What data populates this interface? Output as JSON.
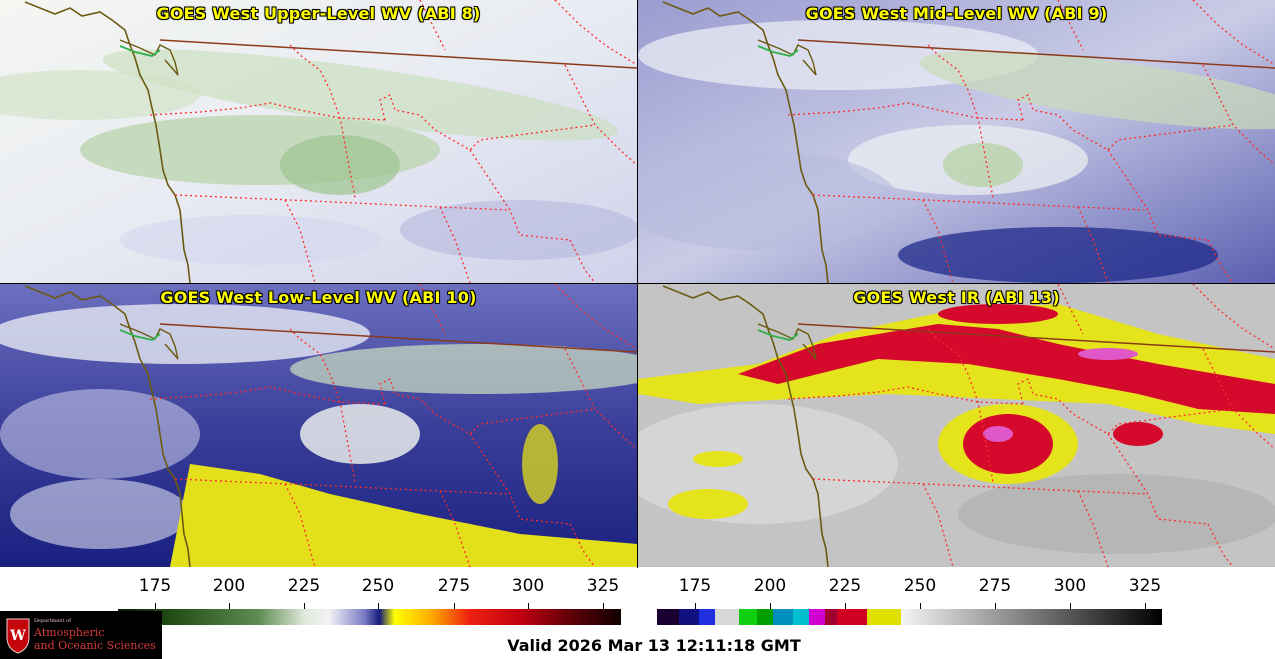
{
  "panels": [
    {
      "title": "GOES West Upper-Level WV (ABI 8)"
    },
    {
      "title": "GOES West Mid-Level WV (ABI 9)"
    },
    {
      "title": "GOES West Low-Level WV (ABI 10)"
    },
    {
      "title": "GOES West IR (ABI 13)"
    }
  ],
  "colorbars": {
    "wv": {
      "ticks": [
        "175",
        "200",
        "225",
        "250",
        "275",
        "300",
        "325"
      ]
    },
    "ir": {
      "ticks": [
        "175",
        "200",
        "225",
        "250",
        "275",
        "300",
        "325"
      ]
    }
  },
  "valid_time": "Valid 2026 Mar 13 12:11:18 GMT",
  "logo": {
    "line1": "Department of",
    "line2": "Atmospheric",
    "line3": "and Oceanic Sciences"
  },
  "colors": {
    "border": "#ff2a2a",
    "coast": "#6b5a10",
    "canada_border": "#8b3a1a",
    "title": "#ffff00"
  }
}
